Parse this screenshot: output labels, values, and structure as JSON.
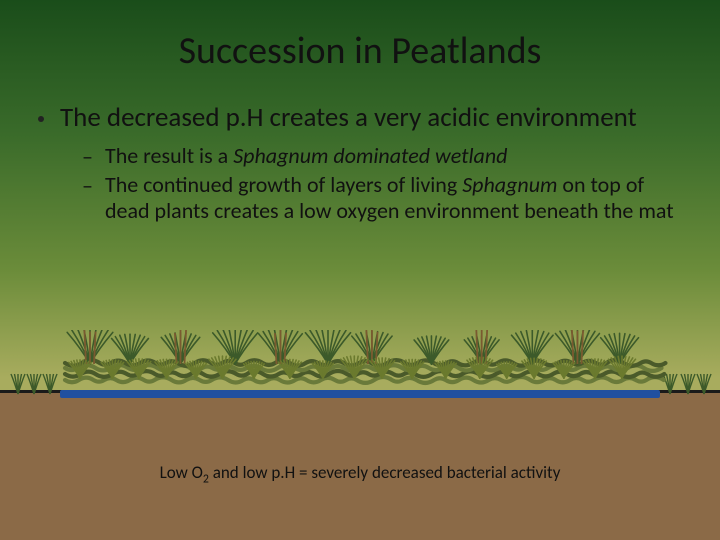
{
  "title": "Succession in Peatlands",
  "main_bullet": "The decreased p.H creates a very acidic environment",
  "sub_bullets": [
    {
      "pre": "The result is a ",
      "italic": "Sphagnum dominated wetland",
      "post": ""
    },
    {
      "pre": "The continued growth of layers of living ",
      "italic": "Sphagnum",
      "post": " on top of dead plants creates a low oxygen environment beneath the mat"
    }
  ],
  "caption_pre": "Low O",
  "caption_sub": "2",
  "caption_post": " and low p.H = severely decreased bacterial activity",
  "colors": {
    "grass_dark": "#3c5a2a",
    "grass_olive": "#6b7a2e",
    "grass_brown": "#7a5a30",
    "water": "#2050a0",
    "moss_olive": "#6a7a3a",
    "moss_dark": "#4a5a2a",
    "ground": "#8b6a47"
  }
}
